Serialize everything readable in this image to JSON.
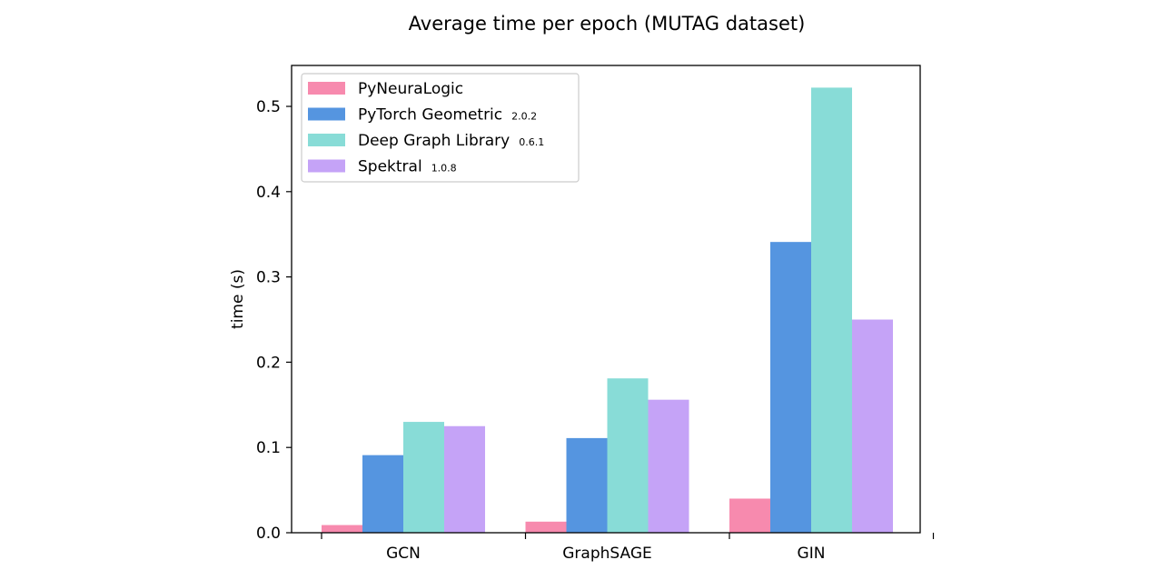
{
  "chart_data": {
    "type": "bar",
    "title": "Average time per epoch (MUTAG dataset)",
    "xlabel": "",
    "ylabel": "time (s)",
    "categories": [
      "GCN",
      "GraphSAGE",
      "GIN"
    ],
    "ylim": [
      0,
      0.548
    ],
    "yticks": [
      "0.0",
      "0.1",
      "0.2",
      "0.3",
      "0.4",
      "0.5"
    ],
    "legend_position": "top-left",
    "grid": false,
    "series": [
      {
        "name": "PyNeuraLogic",
        "version": "",
        "color": "#f78aae",
        "values": [
          0.009,
          0.013,
          0.04
        ]
      },
      {
        "name": "PyTorch Geometric",
        "version": "2.0.2",
        "color": "#5595e0",
        "values": [
          0.091,
          0.111,
          0.341
        ]
      },
      {
        "name": "Deep Graph Library",
        "version": "0.6.1",
        "color": "#88dcd7",
        "values": [
          0.13,
          0.181,
          0.522
        ]
      },
      {
        "name": "Spektral",
        "version": "1.0.8",
        "color": "#c5a3f7",
        "values": [
          0.125,
          0.156,
          0.25
        ]
      }
    ]
  }
}
